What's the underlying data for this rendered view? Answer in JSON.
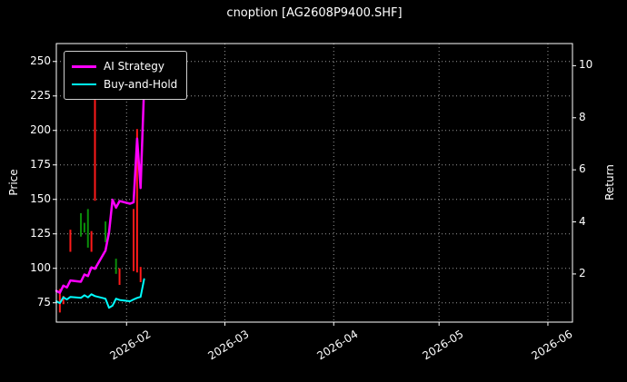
{
  "chart_data": {
    "type": "line+price-bars",
    "title": "cnoption [AG2608P9400.SHF]",
    "ylabel_left": "Price",
    "ylabel_right": "Return",
    "x_domain": [
      "2026-01-12",
      "2026-06-08"
    ],
    "x_ticks": [
      "2026-02",
      "2026-03",
      "2026-04",
      "2026-05",
      "2026-06"
    ],
    "ylim_left": [
      61,
      263
    ],
    "y_ticks_left": [
      75,
      100,
      125,
      150,
      175,
      200,
      225,
      250
    ],
    "ylim_right": [
      0.15,
      10.85
    ],
    "y_ticks_right": [
      2,
      4,
      6,
      8,
      10
    ],
    "grid": "dotted",
    "legend_position": "upper-left",
    "colors": {
      "background": "#000000",
      "text": "#ffffff",
      "grid": "#9a9a9a",
      "frame": "#ffffff",
      "red": "#ff1a1a",
      "green": "#0a8f0a"
    },
    "series": [
      {
        "name": "AI Strategy",
        "axis": "right",
        "color": "#ff00ff",
        "width": 2.5,
        "points": [
          [
            "2026-01-12",
            1.35
          ],
          [
            "2026-01-13",
            1.28
          ],
          [
            "2026-01-14",
            1.55
          ],
          [
            "2026-01-15",
            1.48
          ],
          [
            "2026-01-16",
            1.75
          ],
          [
            "2026-01-19",
            1.7
          ],
          [
            "2026-01-20",
            1.98
          ],
          [
            "2026-01-21",
            1.92
          ],
          [
            "2026-01-22",
            2.25
          ],
          [
            "2026-01-23",
            2.2
          ],
          [
            "2026-01-26",
            2.9
          ],
          [
            "2026-01-27",
            3.6
          ],
          [
            "2026-01-28",
            4.85
          ],
          [
            "2026-01-29",
            4.55
          ],
          [
            "2026-01-30",
            4.8
          ],
          [
            "2026-02-02",
            4.7
          ],
          [
            "2026-02-03",
            4.75
          ],
          [
            "2026-02-04",
            7.2
          ],
          [
            "2026-02-05",
            5.3
          ],
          [
            "2026-02-06",
            9.2
          ]
        ]
      },
      {
        "name": "Buy-and-Hold",
        "axis": "right",
        "color": "#00ffff",
        "width": 2,
        "points": [
          [
            "2026-01-12",
            0.95
          ],
          [
            "2026-01-13",
            0.88
          ],
          [
            "2026-01-14",
            1.1
          ],
          [
            "2026-01-15",
            1.02
          ],
          [
            "2026-01-16",
            1.12
          ],
          [
            "2026-01-19",
            1.08
          ],
          [
            "2026-01-20",
            1.18
          ],
          [
            "2026-01-21",
            1.1
          ],
          [
            "2026-01-22",
            1.22
          ],
          [
            "2026-01-23",
            1.15
          ],
          [
            "2026-01-26",
            1.05
          ],
          [
            "2026-01-27",
            0.7
          ],
          [
            "2026-01-28",
            0.78
          ],
          [
            "2026-01-29",
            1.05
          ],
          [
            "2026-01-30",
            1.0
          ],
          [
            "2026-02-02",
            0.95
          ],
          [
            "2026-02-03",
            1.02
          ],
          [
            "2026-02-04",
            1.08
          ],
          [
            "2026-02-05",
            1.12
          ],
          [
            "2026-02-06",
            1.8
          ]
        ]
      }
    ],
    "price_bars": [
      {
        "date": "2026-01-13",
        "low": 68,
        "high": 85,
        "color": "red"
      },
      {
        "date": "2026-01-14",
        "low": 74,
        "high": 80,
        "color": "red"
      },
      {
        "date": "2026-01-16",
        "low": 112,
        "high": 128,
        "color": "red"
      },
      {
        "date": "2026-01-19",
        "low": 123,
        "high": 140,
        "color": "green"
      },
      {
        "date": "2026-01-20",
        "low": 126,
        "high": 133,
        "color": "green"
      },
      {
        "date": "2026-01-21",
        "low": 115,
        "high": 143,
        "color": "green"
      },
      {
        "date": "2026-01-22",
        "low": 112,
        "high": 127,
        "color": "red"
      },
      {
        "date": "2026-01-23",
        "low": 149,
        "high": 226,
        "color": "red"
      },
      {
        "date": "2026-01-26",
        "low": 119,
        "high": 134,
        "color": "green"
      },
      {
        "date": "2026-01-29",
        "low": 96,
        "high": 107,
        "color": "green"
      },
      {
        "date": "2026-01-30",
        "low": 88,
        "high": 100,
        "color": "red"
      },
      {
        "date": "2026-02-03",
        "low": 98,
        "high": 143,
        "color": "red"
      },
      {
        "date": "2026-02-04",
        "low": 97,
        "high": 201,
        "color": "red"
      },
      {
        "date": "2026-02-05",
        "low": 90,
        "high": 101,
        "color": "red"
      }
    ]
  }
}
